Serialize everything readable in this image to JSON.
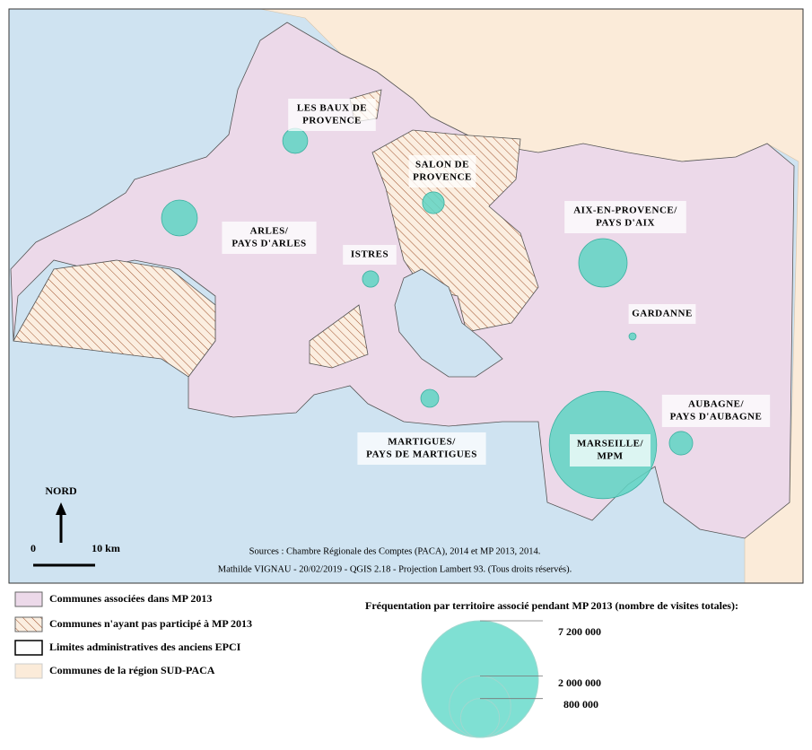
{
  "map": {
    "territories": [
      {
        "label": [
          "LES BAUX DE",
          "PROVENCE"
        ],
        "visits": 330000
      },
      {
        "label": [
          "ARLES/",
          "PAYS D'ARLES"
        ],
        "visits": 680000
      },
      {
        "label": [
          "SALON DE",
          "PROVENCE"
        ],
        "visits": 250000
      },
      {
        "label": [
          "ISTRES"
        ],
        "visits": 140000
      },
      {
        "label": [
          "AIX-EN-PROVENCE/",
          "PAYS D'AIX"
        ],
        "visits": 1240000
      },
      {
        "label": [
          "GARDANNE"
        ],
        "visits": 27000
      },
      {
        "label": [
          "MARSEILLE/",
          "MPM"
        ],
        "visits": 6100000
      },
      {
        "label": [
          "AUBAGNE/",
          "PAYS D'AUBAGNE"
        ],
        "visits": 290000
      },
      {
        "label": [
          "MARTIGUES/",
          "PAYS DE MARTIGUES"
        ],
        "visits": 170000
      }
    ],
    "north": "NORD",
    "scale_start": "0",
    "scale_end": "10 km",
    "sources": [
      "Sources : Chambre Régionale des Comptes (PACA), 2014 et MP 2013, 2014.",
      "Mathilde VIGNAU - 20/02/2019 - QGIS 2.18 - Projection Lambert 93. (Tous droits réservés)."
    ]
  },
  "legend": {
    "items": [
      "Communes associées dans MP 2013",
      "Communes n'ayant pas participé à MP 2013",
      "Limites administratives des anciens EPCI",
      "Communes de la région SUD-PACA"
    ],
    "size_title": "Fréquentation par territoire associé pendant MP 2013 (nombre de visites totales):",
    "sizes": [
      {
        "value": 7200000,
        "label": "7 200 000"
      },
      {
        "value": 2000000,
        "label": "2 000 000"
      },
      {
        "value": 800000,
        "label": "800 000"
      }
    ]
  }
}
